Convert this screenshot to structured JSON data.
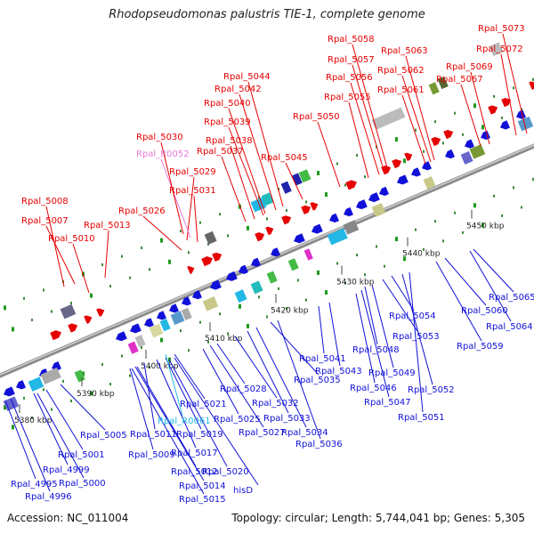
{
  "title": "Rhodopseudomonas palustris TIE-1, complete genome",
  "accession": "Accession: NC_011004",
  "summary": "Topology: circular; Length: 5,744,041 bp; Genes: 5,305",
  "colors": {
    "forward": "#e60000",
    "reverse": "#1010d8",
    "highlight_forward": "#e87ad8",
    "highlight_reverse": "#22b8e6",
    "backbone": "#999999"
  },
  "ticks": [
    "5380 kbp",
    "5390 kbp",
    "5400 kbp",
    "5410 kbp",
    "5420 kbp",
    "5430 kbp",
    "5440 kbp",
    "5450 kbp"
  ],
  "top_labels": [
    {
      "text": "Rpal_5008"
    },
    {
      "text": "Rpal_5007"
    },
    {
      "text": "Rpal_5010"
    },
    {
      "text": "Rpal_5013"
    },
    {
      "text": "Rpal_5026"
    },
    {
      "text": "Rpal_5031"
    },
    {
      "text": "Rpal_5029"
    },
    {
      "text": "Rpal_R0052",
      "highlight": true
    },
    {
      "text": "Rpal_5030"
    },
    {
      "text": "Rpal_5037"
    },
    {
      "text": "Rpal_5038"
    },
    {
      "text": "Rpal_5039"
    },
    {
      "text": "Rpal_5040"
    },
    {
      "text": "Rpal_5042"
    },
    {
      "text": "Rpal_5044"
    },
    {
      "text": "Rpal_5045"
    },
    {
      "text": "Rpal_5050"
    },
    {
      "text": "Rpal_5055"
    },
    {
      "text": "Rpal_5056"
    },
    {
      "text": "Rpal_5057"
    },
    {
      "text": "Rpal_5058"
    },
    {
      "text": "Rpal_5061"
    },
    {
      "text": "Rpal_5062"
    },
    {
      "text": "Rpal_5063"
    },
    {
      "text": "Rpal_5067"
    },
    {
      "text": "Rpal_5069"
    },
    {
      "text": "Rpal_5072"
    },
    {
      "text": "Rpal_5073"
    }
  ],
  "bottom_labels": [
    {
      "text": "Rpal_4996"
    },
    {
      "text": "Rpal_4995"
    },
    {
      "text": "Rpal_5000"
    },
    {
      "text": "Rpal_4999"
    },
    {
      "text": "Rpal_5001"
    },
    {
      "text": "Rpal_5005"
    },
    {
      "text": "Rpal_5015"
    },
    {
      "text": "Rpal_5014"
    },
    {
      "text": "Rpal_5012"
    },
    {
      "text": "Rpal_5009"
    },
    {
      "text": "Rpal_5011"
    },
    {
      "text": "Rpal_5017"
    },
    {
      "text": "Rpal_5019"
    },
    {
      "text": "Rpal_R0061",
      "highlight": true
    },
    {
      "text": "Rpal_5021"
    },
    {
      "text": "Rpal_5020"
    },
    {
      "text": "hisD"
    },
    {
      "text": "Rpal_5025"
    },
    {
      "text": "Rpal_5027"
    },
    {
      "text": "Rpal_5028"
    },
    {
      "text": "Rpal_5032"
    },
    {
      "text": "Rpal_5033"
    },
    {
      "text": "Rpal_5034"
    },
    {
      "text": "Rpal_5035"
    },
    {
      "text": "Rpal_5036"
    },
    {
      "text": "Rpal_5041"
    },
    {
      "text": "Rpal_5043"
    },
    {
      "text": "Rpal_5046"
    },
    {
      "text": "Rpal_5047"
    },
    {
      "text": "Rpal_5048"
    },
    {
      "text": "Rpal_5049"
    },
    {
      "text": "Rpal_5051"
    },
    {
      "text": "Rpal_5052"
    },
    {
      "text": "Rpal_5053"
    },
    {
      "text": "Rpal_5054"
    },
    {
      "text": "Rpal_5059"
    },
    {
      "text": "Rpal_5060"
    },
    {
      "text": "Rpal_5064"
    },
    {
      "text": "Rpal_5065"
    }
  ]
}
